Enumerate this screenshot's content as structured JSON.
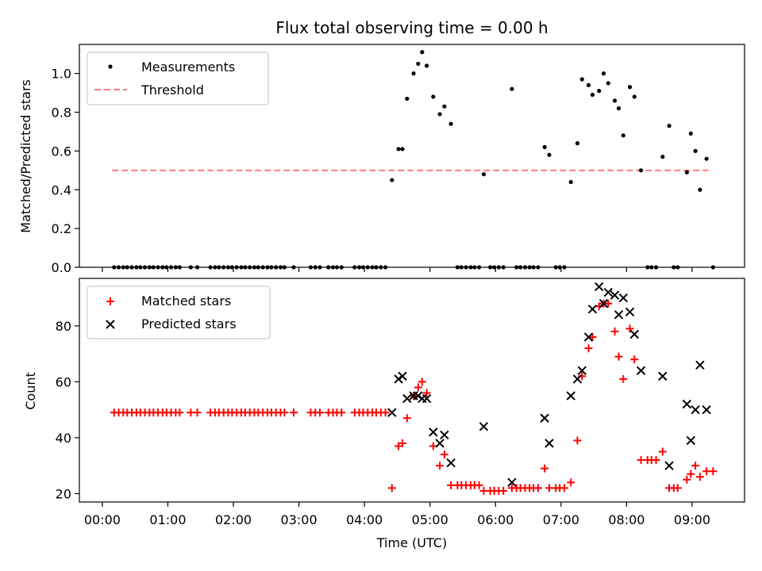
{
  "chart_data": [
    {
      "type": "scatter",
      "title": "Flux total observing time = 0.00 h",
      "xlabel": "",
      "ylabel": "Matched/Predicted stars",
      "ylim": [
        0,
        1.15
      ],
      "yticks": [
        0.0,
        0.2,
        0.4,
        0.6,
        0.8,
        1.0
      ],
      "ytick_labels": [
        "0.0",
        "0.2",
        "0.4",
        "0.6",
        "0.8",
        "1.0"
      ],
      "grid": false,
      "legend": {
        "placement": "top-left",
        "entries": [
          "Measurements",
          "Threshold"
        ]
      },
      "series": [
        {
          "name": "Measurements",
          "marker": "dot",
          "color": "#000000",
          "x": [
            0.18,
            0.25,
            0.32,
            0.38,
            0.45,
            0.52,
            0.58,
            0.65,
            0.72,
            0.78,
            0.85,
            0.92,
            0.98,
            1.05,
            1.12,
            1.18,
            1.35,
            1.45,
            1.65,
            1.72,
            1.78,
            1.85,
            1.92,
            1.98,
            2.05,
            2.12,
            2.18,
            2.25,
            2.32,
            2.38,
            2.45,
            2.52,
            2.58,
            2.65,
            2.72,
            2.78,
            2.92,
            3.18,
            3.25,
            3.32,
            3.45,
            3.52,
            3.58,
            3.65,
            3.85,
            3.92,
            3.98,
            4.05,
            4.12,
            4.18,
            4.25,
            4.32,
            4.42,
            4.52,
            4.58,
            4.65,
            4.75,
            4.82,
            4.88,
            4.95,
            5.05,
            5.15,
            5.22,
            5.32,
            5.42,
            5.48,
            5.55,
            5.62,
            5.68,
            5.75,
            5.82,
            5.92,
            5.98,
            6.05,
            6.12,
            6.25,
            6.32,
            6.38,
            6.45,
            6.52,
            6.58,
            6.65,
            6.75,
            6.82,
            6.92,
            6.98,
            7.05,
            7.15,
            7.25,
            7.32,
            7.42,
            7.48,
            7.58,
            7.65,
            7.72,
            7.82,
            7.88,
            7.95,
            8.05,
            8.12,
            8.22,
            8.32,
            8.38,
            8.45,
            8.55,
            8.65,
            8.72,
            8.78,
            8.92,
            8.98,
            9.05,
            9.12,
            9.22,
            9.32
          ],
          "y": [
            0,
            0,
            0,
            0,
            0,
            0,
            0,
            0,
            0,
            0,
            0,
            0,
            0,
            0,
            0,
            0,
            0,
            0,
            0,
            0,
            0,
            0,
            0,
            0,
            0,
            0,
            0,
            0,
            0,
            0,
            0,
            0,
            0,
            0,
            0,
            0,
            0,
            0,
            0,
            0,
            0,
            0,
            0,
            0,
            0,
            0,
            0,
            0,
            0,
            0,
            0,
            0,
            0.45,
            0.61,
            0.61,
            0.87,
            1.0,
            1.05,
            1.11,
            1.04,
            0.88,
            0.79,
            0.83,
            0.74,
            0,
            0,
            0,
            0,
            0,
            0,
            0.48,
            0,
            0,
            0,
            0,
            0.92,
            0,
            0,
            0,
            0,
            0,
            0,
            0.62,
            0.58,
            0,
            0,
            0,
            0.44,
            0.64,
            0.97,
            0.94,
            0.89,
            0.91,
            1.0,
            0.95,
            0.86,
            0.82,
            0.68,
            0.93,
            0.88,
            0.5,
            0,
            0,
            0,
            0.57,
            0.73,
            0,
            0,
            0.49,
            0.69,
            0.6,
            0.4,
            0.56,
            0
          ]
        },
        {
          "name": "Threshold",
          "style": "dashed",
          "color": "#ff7f7f",
          "x": [
            0.15,
            9.25
          ],
          "y": [
            0.5,
            0.5
          ]
        }
      ]
    },
    {
      "type": "scatter",
      "title": "",
      "xlabel": "Time (UTC)",
      "ylabel": "Count",
      "ylim": [
        17,
        97
      ],
      "yticks": [
        20,
        40,
        60,
        80
      ],
      "ytick_labels": [
        "20",
        "40",
        "60",
        "80"
      ],
      "x_range_hours": [
        -0.35,
        9.8
      ],
      "xticks": [
        0,
        1,
        2,
        3,
        4,
        5,
        6,
        7,
        8,
        9
      ],
      "xtick_labels": [
        "00:00",
        "01:00",
        "02:00",
        "03:00",
        "04:00",
        "05:00",
        "06:00",
        "07:00",
        "08:00",
        "09:00"
      ],
      "grid": false,
      "legend": {
        "placement": "top-left",
        "entries": [
          "Matched stars",
          "Predicted stars"
        ]
      },
      "series": [
        {
          "name": "Matched stars",
          "marker": "plus",
          "color": "#ff0000",
          "x": [
            0.18,
            0.25,
            0.32,
            0.38,
            0.45,
            0.52,
            0.58,
            0.65,
            0.72,
            0.78,
            0.85,
            0.92,
            0.98,
            1.05,
            1.12,
            1.18,
            1.35,
            1.45,
            1.65,
            1.72,
            1.78,
            1.85,
            1.92,
            1.98,
            2.05,
            2.12,
            2.18,
            2.25,
            2.32,
            2.38,
            2.45,
            2.52,
            2.58,
            2.65,
            2.72,
            2.78,
            2.92,
            3.18,
            3.25,
            3.32,
            3.45,
            3.52,
            3.58,
            3.65,
            3.85,
            3.92,
            3.98,
            4.05,
            4.12,
            4.18,
            4.25,
            4.32,
            4.42,
            4.52,
            4.58,
            4.65,
            4.75,
            4.82,
            4.88,
            4.95,
            5.05,
            5.15,
            5.22,
            5.32,
            5.42,
            5.48,
            5.55,
            5.62,
            5.68,
            5.75,
            5.82,
            5.92,
            5.98,
            6.05,
            6.12,
            6.25,
            6.32,
            6.38,
            6.45,
            6.52,
            6.58,
            6.65,
            6.75,
            6.82,
            6.92,
            6.98,
            7.05,
            7.15,
            7.25,
            7.32,
            7.42,
            7.48,
            7.58,
            7.65,
            7.72,
            7.82,
            7.88,
            7.95,
            8.05,
            8.12,
            8.22,
            8.32,
            8.38,
            8.45,
            8.55,
            8.65,
            8.72,
            8.78,
            8.92,
            8.98,
            9.05,
            9.12,
            9.22,
            9.32
          ],
          "y": [
            49,
            49,
            49,
            49,
            49,
            49,
            49,
            49,
            49,
            49,
            49,
            49,
            49,
            49,
            49,
            49,
            49,
            49,
            49,
            49,
            49,
            49,
            49,
            49,
            49,
            49,
            49,
            49,
            49,
            49,
            49,
            49,
            49,
            49,
            49,
            49,
            49,
            49,
            49,
            49,
            49,
            49,
            49,
            49,
            49,
            49,
            49,
            49,
            49,
            49,
            49,
            49,
            22,
            37,
            38,
            47,
            55,
            58,
            60,
            56,
            37,
            30,
            34,
            23,
            23,
            23,
            23,
            23,
            23,
            23,
            21,
            21,
            21,
            21,
            21,
            22,
            22,
            22,
            22,
            22,
            22,
            22,
            29,
            22,
            22,
            22,
            22,
            24,
            39,
            62,
            72,
            76,
            87,
            88,
            88,
            78,
            69,
            61,
            79,
            68,
            32,
            32,
            32,
            32,
            35,
            22,
            22,
            22,
            25,
            27,
            30,
            26,
            28,
            28
          ]
        },
        {
          "name": "Predicted stars",
          "marker": "x",
          "color": "#000000",
          "x": [
            4.42,
            4.52,
            4.58,
            4.65,
            4.75,
            4.82,
            4.88,
            4.95,
            5.05,
            5.15,
            5.22,
            5.32,
            5.82,
            6.25,
            6.75,
            6.82,
            7.15,
            7.25,
            7.32,
            7.42,
            7.48,
            7.58,
            7.65,
            7.72,
            7.82,
            7.88,
            7.95,
            8.05,
            8.12,
            8.22,
            8.55,
            8.65,
            8.92,
            8.98,
            9.05,
            9.12,
            9.22
          ],
          "y": [
            49,
            61,
            62,
            54,
            55,
            55,
            54,
            54,
            42,
            38,
            41,
            31,
            44,
            24,
            47,
            38,
            55,
            61,
            64,
            76,
            86,
            94,
            88,
            92,
            91,
            84,
            90,
            85,
            77,
            64,
            62,
            30,
            52,
            39,
            50,
            66,
            50
          ]
        }
      ]
    }
  ]
}
